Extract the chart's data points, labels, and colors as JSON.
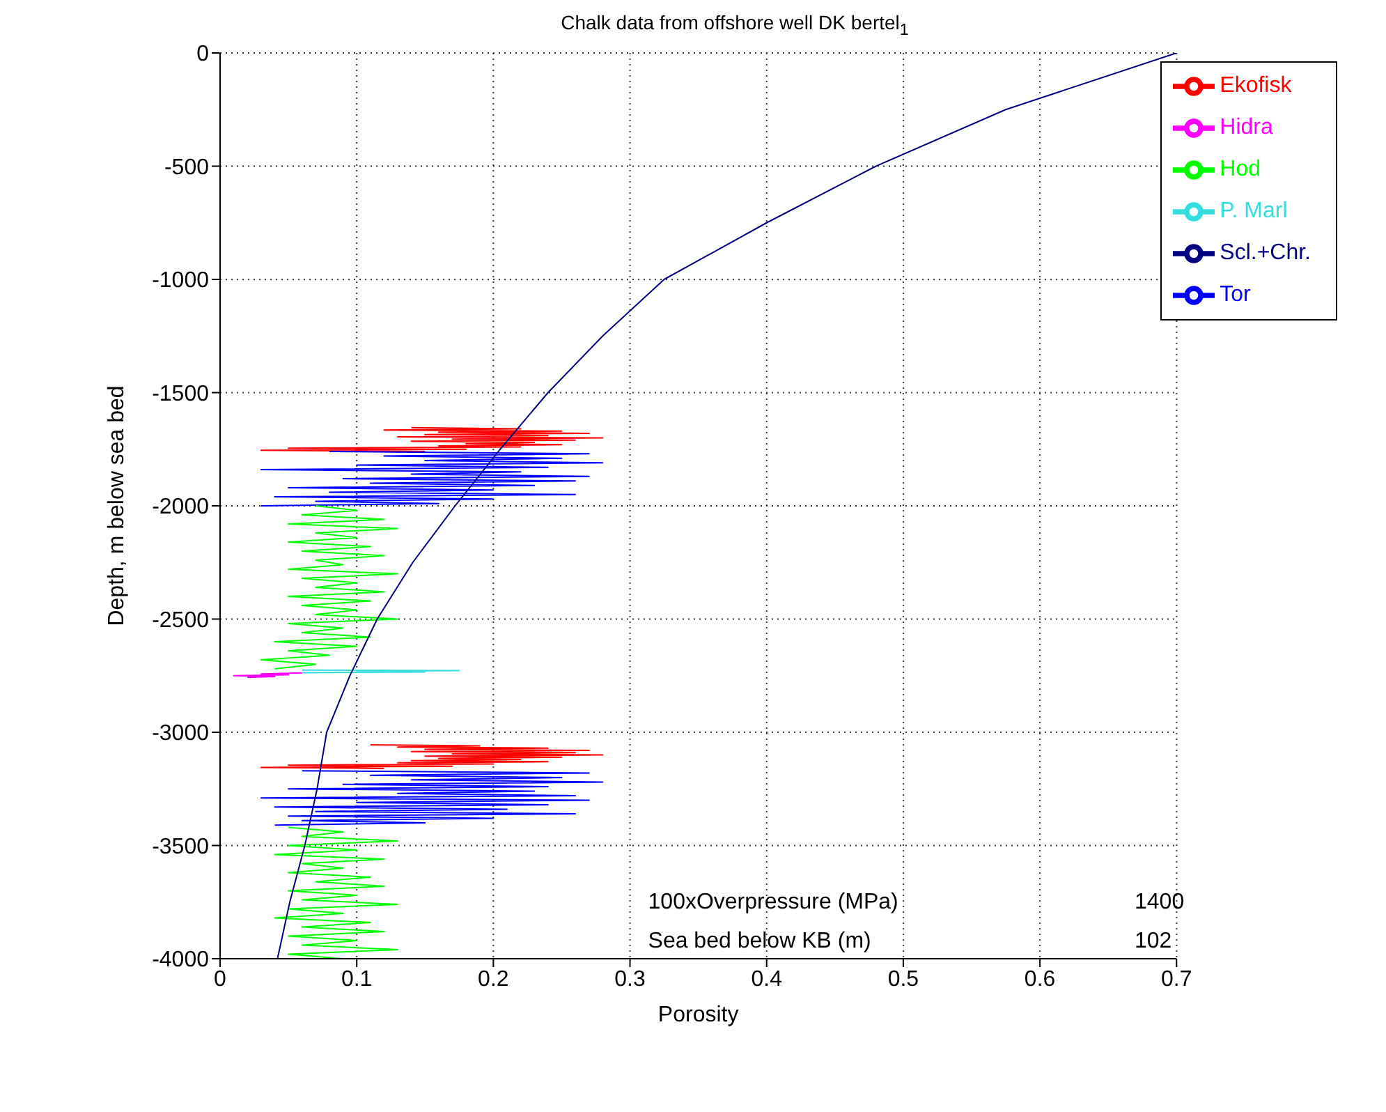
{
  "chart_data": {
    "type": "line",
    "title": "Chalk data from offshore well DK bertel$_{1}$",
    "xlabel": "Porosity",
    "ylabel": "Depth, m below sea bed",
    "xlim": [
      0,
      0.7
    ],
    "xticks": [
      0,
      0.1,
      0.2,
      0.3,
      0.4,
      0.5,
      0.6,
      0.7
    ],
    "ylim": [
      -4000,
      0
    ],
    "yticks": [
      -4000,
      -3500,
      -3000,
      -2500,
      -2000,
      -1500,
      -1000,
      -500,
      0
    ],
    "grid": true,
    "legend": "top right",
    "line_style": "solid",
    "annotations": [
      "100xOverpressure (MPa)",
      "1400",
      "Sea bed below KB (m)",
      "102"
    ],
    "series": [
      {
        "name": "Ekofisk",
        "color": "#ff0000",
        "x": [
          0.14,
          0.22,
          0.12,
          0.25,
          0.16,
          0.27,
          0.15,
          0.24,
          0.13,
          0.28,
          0.17,
          0.26,
          0.14,
          0.23,
          0.18,
          0.25,
          0.16,
          0.22,
          0.05,
          0.18,
          0.03,
          0.15,
          null,
          0.11,
          0.19,
          0.13,
          0.24,
          0.15,
          0.27,
          0.14,
          0.26,
          0.17,
          0.28,
          0.15,
          0.25,
          0.16,
          0.22,
          0.14,
          0.24,
          0.13,
          0.2,
          0.05,
          0.17,
          0.03,
          0.12
        ],
        "values": [
          -1655,
          -1660,
          -1665,
          -1670,
          -1675,
          -1680,
          -1685,
          -1690,
          -1695,
          -1700,
          -1705,
          -1710,
          -1715,
          -1720,
          -1725,
          -1730,
          -1735,
          -1740,
          -1745,
          -1750,
          -1755,
          -1760,
          null,
          -3055,
          -3060,
          -3065,
          -3070,
          -3075,
          -3080,
          -3085,
          -3090,
          -3095,
          -3100,
          -3105,
          -3110,
          -3115,
          -3120,
          -3125,
          -3130,
          -3135,
          -3140,
          -3145,
          -3150,
          -3155,
          -3160
        ]
      },
      {
        "name": "Tor",
        "color": "#0000ff",
        "x": [
          0.08,
          0.27,
          0.12,
          0.25,
          0.15,
          0.28,
          0.1,
          0.24,
          0.03,
          0.22,
          0.14,
          0.27,
          0.09,
          0.26,
          0.11,
          0.23,
          0.05,
          0.2,
          0.08,
          0.26,
          0.04,
          0.2,
          0.07,
          0.16,
          0.03,
          null,
          0.06,
          0.27,
          0.11,
          0.25,
          0.14,
          0.28,
          0.09,
          0.24,
          0.05,
          0.23,
          0.13,
          0.26,
          0.03,
          0.27,
          0.1,
          0.24,
          0.04,
          0.21,
          0.07,
          0.26,
          0.05,
          0.2,
          0.06,
          0.15,
          0.04
        ],
        "values": [
          -1760,
          -1770,
          -1780,
          -1790,
          -1800,
          -1810,
          -1820,
          -1830,
          -1840,
          -1850,
          -1860,
          -1870,
          -1880,
          -1890,
          -1900,
          -1910,
          -1920,
          -1930,
          -1940,
          -1950,
          -1960,
          -1970,
          -1980,
          -1990,
          -2000,
          null,
          -3170,
          -3180,
          -3190,
          -3200,
          -3210,
          -3220,
          -3230,
          -3240,
          -3250,
          -3260,
          -3270,
          -3280,
          -3290,
          -3300,
          -3310,
          -3320,
          -3330,
          -3340,
          -3350,
          -3360,
          -3370,
          -3380,
          -3390,
          -3400,
          -3410
        ]
      },
      {
        "name": "Hod",
        "color": "#00ff00",
        "x": [
          0.07,
          0.1,
          0.06,
          0.12,
          0.05,
          0.13,
          0.07,
          0.1,
          0.05,
          0.11,
          0.06,
          0.12,
          0.07,
          0.09,
          0.05,
          0.13,
          0.06,
          0.1,
          0.07,
          0.12,
          0.05,
          0.11,
          0.06,
          0.1,
          0.07,
          0.13,
          0.05,
          0.09,
          0.06,
          0.11,
          0.04,
          0.1,
          0.05,
          0.08,
          0.03,
          0.07,
          0.04,
          null,
          0.05,
          0.09,
          0.06,
          0.13,
          0.05,
          0.1,
          0.04,
          0.12,
          0.06,
          0.09,
          0.05,
          0.11,
          0.07,
          0.12,
          0.05,
          0.1,
          0.06,
          0.13,
          0.05,
          0.09,
          0.04,
          0.11,
          0.06,
          0.12,
          0.05,
          0.1,
          0.06,
          0.13,
          0.05,
          0.09
        ],
        "values": [
          -2000,
          -2020,
          -2040,
          -2060,
          -2080,
          -2100,
          -2120,
          -2140,
          -2160,
          -2180,
          -2200,
          -2220,
          -2240,
          -2260,
          -2280,
          -2300,
          -2320,
          -2340,
          -2360,
          -2380,
          -2400,
          -2420,
          -2440,
          -2460,
          -2480,
          -2500,
          -2520,
          -2540,
          -2560,
          -2580,
          -2600,
          -2620,
          -2640,
          -2660,
          -2680,
          -2700,
          -2720,
          null,
          -3420,
          -3440,
          -3460,
          -3480,
          -3500,
          -3520,
          -3540,
          -3560,
          -3580,
          -3600,
          -3620,
          -3640,
          -3660,
          -3680,
          -3700,
          -3720,
          -3740,
          -3760,
          -3780,
          -3800,
          -3820,
          -3840,
          -3860,
          -3880,
          -3900,
          -3920,
          -3940,
          -3960,
          -3980,
          -4000
        ]
      },
      {
        "name": "P. Marl",
        "color": "#33dddd",
        "x": [
          0.06,
          0.175,
          0.1,
          0.15,
          0.06
        ],
        "values": [
          -2725,
          -2728,
          -2731,
          -2734,
          -2737
        ]
      },
      {
        "name": "Hidra",
        "color": "#ff00ff",
        "x": [
          0.06,
          0.03,
          0.05,
          0.01,
          0.04,
          0.02
        ],
        "values": [
          -2738,
          -2742,
          -2746,
          -2750,
          -2754,
          -2758
        ]
      },
      {
        "name": "Scl.+Chr.",
        "color": "#000080",
        "x": [
          0.7,
          0.575,
          0.48,
          0.4,
          0.325,
          0.28,
          0.24,
          0.205,
          0.172,
          0.141,
          0.115,
          0.095,
          0.078,
          0.071,
          0.062,
          0.051,
          0.042
        ],
        "values": [
          0,
          -250,
          -500,
          -750,
          -1000,
          -1250,
          -1500,
          -1750,
          -2000,
          -2250,
          -2500,
          -2750,
          -3000,
          -3250,
          -3500,
          -3750,
          -4000
        ]
      }
    ]
  }
}
